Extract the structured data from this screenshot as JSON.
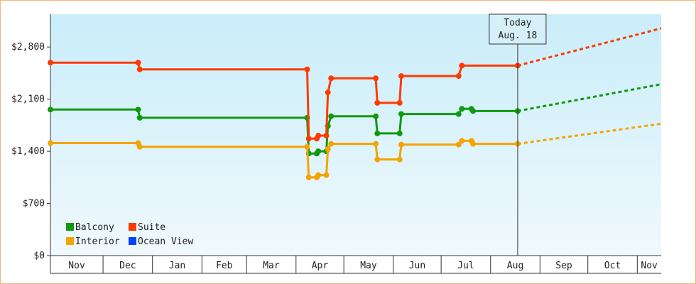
{
  "chart_data": {
    "type": "line",
    "y_ticks": [
      0,
      700,
      1400,
      2100,
      2800
    ],
    "y_tick_labels": [
      "$0",
      "$700",
      "$1,400",
      "$2,100",
      "$2,800"
    ],
    "ylim": [
      0,
      3240
    ],
    "x_months": [
      {
        "label": "Nov",
        "start": "2018-10-29",
        "end": "2018-11-30"
      },
      {
        "label": "Dec",
        "start": "2018-12-01",
        "end": "2018-12-31"
      },
      {
        "label": "Jan",
        "start": "2019-01-01",
        "end": "2019-01-31"
      },
      {
        "label": "Feb",
        "start": "2019-02-01",
        "end": "2019-02-28"
      },
      {
        "label": "Mar",
        "start": "2019-03-01",
        "end": "2019-03-31"
      },
      {
        "label": "Apr",
        "start": "2019-04-01",
        "end": "2019-04-30"
      },
      {
        "label": "May",
        "start": "2019-05-01",
        "end": "2019-05-31"
      },
      {
        "label": "Jun",
        "start": "2019-06-01",
        "end": "2019-06-30"
      },
      {
        "label": "Jul",
        "start": "2019-07-01",
        "end": "2019-07-31"
      },
      {
        "label": "Aug",
        "start": "2019-08-01",
        "end": "2019-08-31"
      },
      {
        "label": "Sep",
        "start": "2019-09-01",
        "end": "2019-09-30"
      },
      {
        "label": "Oct",
        "start": "2019-10-01",
        "end": "2019-10-31"
      },
      {
        "label": "Nov",
        "start": "2019-11-01",
        "end": "2019-11-16"
      }
    ],
    "x_start": "2018-10-29",
    "x_end": "2019-11-16",
    "today": {
      "date": "2019-08-18",
      "label_line1": "Today",
      "label_line2": "Aug. 18"
    },
    "legend_placement": "bottom-left",
    "series": [
      {
        "name": "Balcony",
        "color": "#119911",
        "points": [
          [
            "2018-10-29",
            1960
          ],
          [
            "2018-12-23",
            1960
          ],
          [
            "2018-12-24",
            1850
          ],
          [
            "2019-04-08",
            1850
          ],
          [
            "2019-04-09",
            1370
          ],
          [
            "2019-04-14",
            1370
          ],
          [
            "2019-04-15",
            1400
          ],
          [
            "2019-04-20",
            1400
          ],
          [
            "2019-04-21",
            1740
          ],
          [
            "2019-04-23",
            1870
          ],
          [
            "2019-05-21",
            1870
          ],
          [
            "2019-05-22",
            1640
          ],
          [
            "2019-06-05",
            1640
          ],
          [
            "2019-06-06",
            1900
          ],
          [
            "2019-07-12",
            1900
          ],
          [
            "2019-07-14",
            1970
          ],
          [
            "2019-07-20",
            1970
          ],
          [
            "2019-07-21",
            1940
          ],
          [
            "2019-08-18",
            1940
          ]
        ],
        "forecast": [
          [
            "2019-08-18",
            1940
          ],
          [
            "2019-11-16",
            2300
          ]
        ]
      },
      {
        "name": "Suite",
        "color": "#ff3a00",
        "points": [
          [
            "2018-10-29",
            2590
          ],
          [
            "2018-12-23",
            2590
          ],
          [
            "2018-12-24",
            2500
          ],
          [
            "2019-04-08",
            2500
          ],
          [
            "2019-04-09",
            1570
          ],
          [
            "2019-04-14",
            1570
          ],
          [
            "2019-04-15",
            1610
          ],
          [
            "2019-04-20",
            1610
          ],
          [
            "2019-04-21",
            2190
          ],
          [
            "2019-04-23",
            2380
          ],
          [
            "2019-05-21",
            2380
          ],
          [
            "2019-05-22",
            2050
          ],
          [
            "2019-06-05",
            2050
          ],
          [
            "2019-06-06",
            2410
          ],
          [
            "2019-07-12",
            2410
          ],
          [
            "2019-07-14",
            2550
          ],
          [
            "2019-08-18",
            2550
          ]
        ],
        "forecast": [
          [
            "2019-08-18",
            2550
          ],
          [
            "2019-11-16",
            3050
          ]
        ]
      },
      {
        "name": "Interior",
        "color": "#f5a300",
        "points": [
          [
            "2018-10-29",
            1510
          ],
          [
            "2018-12-23",
            1510
          ],
          [
            "2018-12-24",
            1460
          ],
          [
            "2019-04-08",
            1460
          ],
          [
            "2019-04-09",
            1050
          ],
          [
            "2019-04-14",
            1050
          ],
          [
            "2019-04-15",
            1080
          ],
          [
            "2019-04-20",
            1080
          ],
          [
            "2019-04-21",
            1430
          ],
          [
            "2019-04-23",
            1500
          ],
          [
            "2019-05-21",
            1500
          ],
          [
            "2019-05-22",
            1290
          ],
          [
            "2019-06-05",
            1290
          ],
          [
            "2019-06-06",
            1490
          ],
          [
            "2019-07-12",
            1490
          ],
          [
            "2019-07-14",
            1540
          ],
          [
            "2019-07-20",
            1540
          ],
          [
            "2019-07-21",
            1500
          ],
          [
            "2019-08-18",
            1500
          ]
        ],
        "forecast": [
          [
            "2019-08-18",
            1500
          ],
          [
            "2019-11-16",
            1770
          ]
        ]
      },
      {
        "name": "Ocean View",
        "color": "#0044ff",
        "points": [],
        "forecast": []
      }
    ]
  }
}
